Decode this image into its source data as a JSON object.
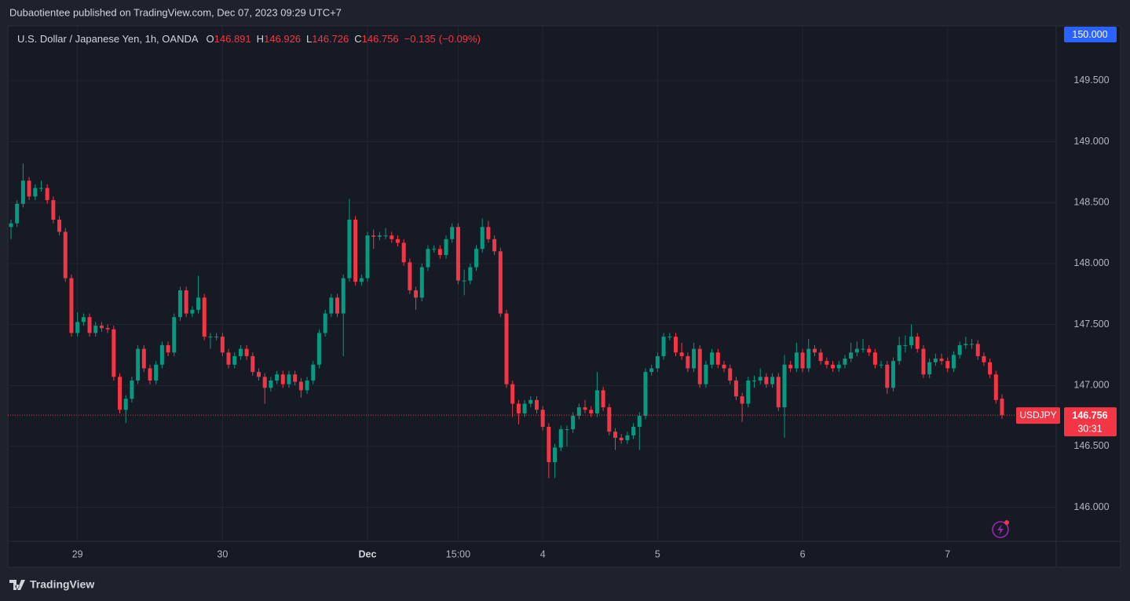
{
  "header": {
    "title": "Dubaotientee published on TradingView.com, Dec 07, 2023 09:29 UTC+7"
  },
  "chart_data": {
    "type": "candlestick",
    "symbol_title": "U.S. Dollar / Japanese Yen, 1h, OANDA",
    "legend_prefixes": [
      "O",
      "H",
      "L",
      "C"
    ],
    "change": {
      "value": -0.135,
      "label": "−0.135"
    },
    "change_percent": {
      "value": -0.09,
      "label": "(−0.09%)"
    },
    "symbol": "USDJPY",
    "countdown": "30:31",
    "alert": {
      "value": 150,
      "label": "150.000"
    },
    "categories": [
      null,
      null,
      null,
      null,
      null,
      null,
      null,
      null,
      null,
      null,
      null,
      "29",
      null,
      null,
      null,
      null,
      null,
      null,
      null,
      null,
      null,
      null,
      null,
      null,
      null,
      null,
      null,
      null,
      null,
      null,
      null,
      null,
      null,
      null,
      null,
      "30",
      null,
      null,
      null,
      null,
      null,
      null,
      null,
      null,
      null,
      null,
      null,
      null,
      null,
      null,
      null,
      null,
      null,
      null,
      null,
      null,
      null,
      null,
      null,
      "Dec",
      null,
      null,
      null,
      null,
      null,
      null,
      null,
      null,
      null,
      null,
      null,
      null,
      null,
      null,
      "15:00",
      null,
      null,
      null,
      null,
      null,
      null,
      null,
      null,
      null,
      null,
      null,
      null,
      null,
      "4",
      null,
      null,
      null,
      null,
      null,
      null,
      null,
      null,
      null,
      null,
      null,
      null,
      null,
      null,
      null,
      null,
      null,
      null,
      "5",
      null,
      null,
      null,
      null,
      null,
      null,
      null,
      null,
      null,
      null,
      null,
      null,
      null,
      null,
      null,
      null,
      null,
      null,
      null,
      null,
      null,
      null,
      null,
      "6",
      null,
      null,
      null,
      null,
      null,
      null,
      null,
      null,
      null,
      null,
      null,
      null,
      null,
      null,
      null,
      null,
      null,
      null,
      null,
      null,
      null,
      null,
      null,
      "7",
      null,
      null,
      null,
      null,
      null,
      null,
      null,
      null,
      null
    ],
    "open": [
      148.3,
      148.33,
      148.49,
      148.68,
      148.55,
      148.62,
      148.62,
      148.52,
      148.36,
      148.26,
      147.88,
      147.43,
      147.52,
      147.56,
      147.43,
      147.49,
      147.47,
      147.46,
      147.07,
      146.8,
      146.89,
      147.04,
      147.3,
      147.14,
      147.04,
      147.17,
      147.33,
      147.27,
      147.56,
      147.78,
      147.59,
      147.62,
      147.72,
      147.4,
      147.4,
      147.4,
      147.27,
      147.17,
      147.24,
      147.3,
      147.24,
      147.11,
      147.07,
      146.98,
      147.04,
      147.09,
      147.01,
      147.09,
      147.03,
      146.96,
      147.04,
      147.17,
      147.43,
      147.59,
      147.72,
      147.59,
      147.88,
      148.36,
      147.85,
      147.88,
      148.23,
      148.22,
      148.23,
      148.23,
      148.2,
      148.17,
      148.01,
      147.78,
      147.72,
      147.97,
      148.12,
      148.12,
      148.07,
      148.2,
      148.3,
      147.86,
      147.86,
      147.97,
      148.12,
      148.3,
      148.2,
      148.1,
      147.59,
      147.01,
      146.85,
      146.77,
      146.85,
      146.88,
      146.8,
      146.66,
      146.37,
      146.49,
      146.64,
      146.64,
      146.75,
      146.82,
      146.8,
      146.77,
      146.96,
      146.82,
      146.62,
      146.57,
      146.55,
      146.59,
      146.66,
      146.75,
      147.11,
      147.14,
      147.24,
      147.4,
      147.4,
      147.27,
      147.24,
      147.14,
      147.3,
      147.01,
      147.17,
      147.27,
      147.17,
      147.14,
      147.04,
      146.91,
      146.85,
      147.04,
      147.04,
      147.07,
      147.01,
      147.07,
      146.82,
      147.17,
      147.14,
      147.27,
      147.14,
      147.3,
      147.27,
      147.2,
      147.17,
      147.14,
      147.17,
      147.22,
      147.27,
      147.3,
      147.3,
      147.27,
      147.17,
      147.17,
      146.98,
      147.2,
      147.33,
      147.33,
      147.4,
      147.3,
      147.09,
      147.19,
      147.22,
      147.2,
      147.14,
      147.25,
      147.33,
      147.34,
      147.34,
      147.24,
      147.19,
      147.09,
      146.891
    ],
    "high": [
      148.36,
      148.52,
      148.82,
      148.71,
      148.65,
      148.68,
      148.65,
      148.55,
      148.39,
      148.29,
      147.91,
      147.6,
      147.59,
      147.59,
      147.52,
      147.52,
      147.5,
      147.49,
      147.1,
      146.92,
      147.07,
      147.33,
      147.33,
      147.17,
      147.2,
      147.36,
      147.36,
      147.59,
      147.81,
      147.81,
      147.65,
      147.9,
      147.75,
      147.43,
      147.43,
      147.43,
      147.3,
      147.27,
      147.33,
      147.33,
      147.27,
      147.14,
      147.1,
      147.07,
      147.12,
      147.12,
      147.12,
      147.12,
      147.06,
      147.07,
      147.2,
      147.46,
      147.62,
      147.75,
      147.75,
      147.91,
      148.53,
      148.39,
      147.91,
      148.26,
      148.28,
      148.26,
      148.29,
      148.26,
      148.23,
      148.2,
      148.04,
      147.81,
      148.0,
      148.15,
      148.15,
      148.15,
      148.23,
      148.33,
      148.33,
      147.95,
      148.0,
      148.15,
      148.37,
      148.35,
      148.23,
      148.13,
      147.62,
      147.04,
      146.88,
      146.88,
      146.91,
      146.91,
      146.83,
      146.69,
      146.52,
      146.67,
      146.67,
      146.78,
      146.85,
      146.88,
      146.83,
      147.11,
      146.99,
      146.85,
      146.65,
      146.6,
      146.62,
      146.69,
      146.78,
      147.14,
      147.17,
      147.27,
      147.43,
      147.43,
      147.43,
      147.35,
      147.27,
      147.35,
      147.33,
      147.2,
      147.3,
      147.3,
      147.2,
      147.17,
      147.07,
      146.94,
      147.07,
      147.08,
      147.14,
      147.1,
      147.1,
      147.1,
      147.25,
      147.2,
      147.35,
      147.3,
      147.38,
      147.33,
      147.3,
      147.23,
      147.2,
      147.2,
      147.25,
      147.35,
      147.36,
      147.38,
      147.33,
      147.3,
      147.2,
      147.2,
      147.23,
      147.4,
      147.41,
      147.5,
      147.43,
      147.33,
      147.22,
      147.26,
      147.26,
      147.23,
      147.28,
      147.36,
      147.4,
      147.38,
      147.37,
      147.27,
      147.22,
      147.12,
      146.926
    ],
    "low": [
      148.2,
      148.3,
      148.46,
      148.52,
      148.52,
      148.59,
      148.49,
      148.33,
      148.23,
      147.85,
      147.4,
      147.4,
      147.49,
      147.4,
      147.4,
      147.44,
      147.43,
      147.04,
      146.77,
      146.69,
      146.86,
      147.01,
      147.11,
      147.01,
      147.01,
      147.14,
      147.24,
      147.24,
      147.53,
      147.56,
      147.56,
      147.59,
      147.37,
      147.3,
      147.37,
      147.24,
      147.14,
      147.14,
      147.21,
      147.21,
      147.08,
      147.04,
      146.85,
      146.95,
      147.01,
      146.98,
      146.98,
      147.0,
      146.9,
      146.93,
      147.01,
      147.14,
      147.4,
      147.56,
      147.56,
      147.24,
      147.85,
      147.82,
      147.82,
      147.85,
      148.12,
      148.19,
      148.2,
      148.17,
      148.14,
      147.98,
      147.75,
      147.62,
      147.69,
      147.94,
      148.09,
      148.04,
      148.04,
      148.17,
      147.83,
      147.74,
      147.83,
      147.94,
      148.09,
      148.17,
      148.07,
      147.56,
      146.98,
      146.74,
      146.68,
      146.74,
      146.82,
      146.77,
      146.63,
      146.24,
      146.24,
      146.46,
      146.5,
      146.61,
      146.72,
      146.77,
      146.74,
      146.74,
      146.79,
      146.59,
      146.47,
      146.52,
      146.52,
      146.56,
      146.47,
      146.72,
      147.08,
      147.11,
      147.21,
      147.37,
      147.24,
      147.21,
      147.11,
      147.11,
      146.98,
      146.98,
      147.14,
      147.14,
      147.11,
      147.01,
      146.88,
      146.7,
      146.82,
      146.98,
      147.01,
      146.98,
      146.98,
      146.79,
      146.57,
      147.11,
      147.11,
      147.11,
      147.11,
      147.24,
      147.17,
      147.14,
      147.11,
      147.11,
      147.14,
      147.19,
      147.24,
      147.27,
      147.24,
      147.14,
      147.14,
      146.93,
      146.95,
      147.17,
      147.27,
      147.3,
      147.27,
      147.06,
      147.06,
      147.16,
      147.17,
      147.11,
      147.11,
      147.22,
      147.3,
      147.3,
      147.21,
      147.16,
      147.06,
      146.85,
      146.726
    ],
    "close": [
      148.33,
      148.49,
      148.68,
      148.55,
      148.62,
      148.62,
      148.52,
      148.36,
      148.26,
      147.88,
      147.43,
      147.52,
      147.56,
      147.43,
      147.49,
      147.47,
      147.46,
      147.07,
      146.8,
      146.89,
      147.04,
      147.3,
      147.14,
      147.04,
      147.17,
      147.33,
      147.27,
      147.56,
      147.78,
      147.59,
      147.62,
      147.72,
      147.4,
      147.4,
      147.4,
      147.27,
      147.17,
      147.24,
      147.3,
      147.24,
      147.11,
      147.07,
      146.98,
      147.04,
      147.09,
      147.01,
      147.09,
      147.03,
      146.96,
      147.04,
      147.17,
      147.43,
      147.59,
      147.72,
      147.59,
      147.88,
      148.36,
      147.85,
      147.88,
      148.23,
      148.22,
      148.23,
      148.23,
      148.2,
      148.17,
      148.01,
      147.78,
      147.72,
      147.97,
      148.12,
      148.12,
      148.07,
      148.2,
      148.3,
      147.86,
      147.86,
      147.97,
      148.12,
      148.3,
      148.2,
      148.1,
      147.59,
      147.01,
      146.85,
      146.77,
      146.85,
      146.88,
      146.8,
      146.66,
      146.37,
      146.49,
      146.64,
      146.64,
      146.75,
      146.82,
      146.8,
      146.77,
      146.96,
      146.82,
      146.62,
      146.57,
      146.55,
      146.59,
      146.66,
      146.75,
      147.11,
      147.14,
      147.24,
      147.4,
      147.4,
      147.27,
      147.24,
      147.14,
      147.3,
      147.01,
      147.17,
      147.27,
      147.17,
      147.14,
      147.04,
      146.91,
      146.85,
      147.04,
      147.04,
      147.07,
      147.01,
      147.07,
      146.82,
      147.17,
      147.14,
      147.27,
      147.14,
      147.3,
      147.27,
      147.2,
      147.17,
      147.14,
      147.17,
      147.22,
      147.27,
      147.3,
      147.3,
      147.27,
      147.17,
      147.17,
      146.98,
      147.2,
      147.33,
      147.33,
      147.4,
      147.3,
      147.09,
      147.19,
      147.22,
      147.2,
      147.14,
      147.25,
      147.33,
      147.34,
      147.34,
      147.24,
      147.19,
      147.09,
      146.88,
      146.756
    ],
    "up_color": "#089981",
    "down_color": "#f23645",
    "ylim": [
      145.72,
      149.95
    ],
    "yticks": [
      {
        "value": 146,
        "label": "146.000"
      },
      {
        "value": 146.5,
        "label": "146.500"
      },
      {
        "value": 147,
        "label": "147.000"
      },
      {
        "value": 147.5,
        "label": "147.500"
      },
      {
        "value": 148,
        "label": "148.000"
      },
      {
        "value": 148.5,
        "label": "148.500"
      },
      {
        "value": 149,
        "label": "149.000"
      },
      {
        "value": 149.5,
        "label": "149.500"
      }
    ],
    "grid": true
  },
  "footer": {
    "brand": "TradingView"
  }
}
